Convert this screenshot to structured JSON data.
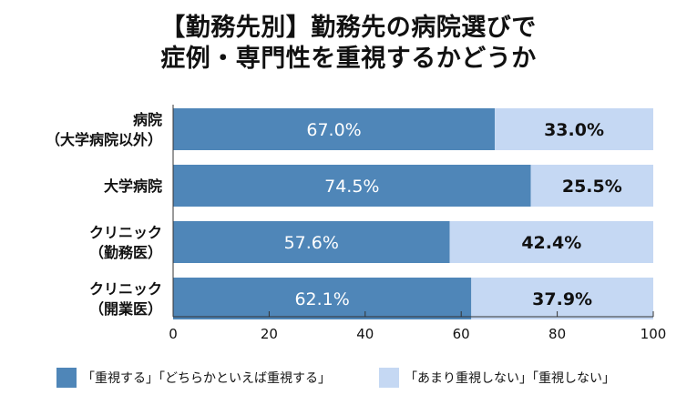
{
  "title": {
    "line1": "【勤務先別】勤務先の病院選びで",
    "line2": "症例・専門性を重視するかどうか"
  },
  "colors": {
    "important": "#4f86b8",
    "not_important": "#c5d8f3",
    "label_text": "#ffffff",
    "value_text": "#111111",
    "axis": "#333333"
  },
  "chart_data": {
    "type": "bar",
    "orientation": "horizontal",
    "stacked": true,
    "categories": [
      [
        "病院",
        "（大学病院以外）"
      ],
      [
        "大学病院"
      ],
      [
        "クリニック",
        "（勤務医）"
      ],
      [
        "クリニック",
        "（開業医）"
      ]
    ],
    "series": [
      {
        "name": "「重視する」「どちらかといえば重視する」",
        "values": [
          67.0,
          74.5,
          57.6,
          62.1
        ]
      },
      {
        "name": "「あまり重視しない」「重視しない」",
        "values": [
          33.0,
          25.5,
          42.4,
          37.9
        ]
      }
    ],
    "data_labels": [
      [
        "67.0%",
        "74.5%",
        "57.6%",
        "62.1%"
      ],
      [
        "33.0%",
        "25.5%",
        "42.4%",
        "37.9%"
      ]
    ],
    "xlim": [
      0,
      100
    ],
    "xticks": [
      0,
      20,
      40,
      60,
      80,
      100
    ],
    "grid": false,
    "legend_position": "bottom"
  }
}
